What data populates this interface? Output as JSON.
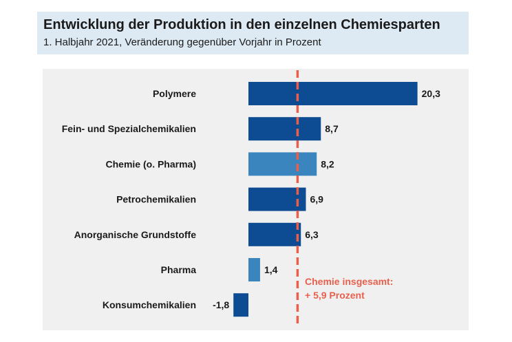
{
  "chart_data": {
    "type": "bar",
    "orientation": "horizontal",
    "title": "Entwicklung der Produktion in den einzelnen Chemiesparten",
    "subtitle": "1. Halbjahr 2021, Veränderung gegenüber Vorjahr in Prozent",
    "categories": [
      "Polymere",
      "Fein- und Spezialchemikalien",
      "Chemie (o. Pharma)",
      "Petrochemikalien",
      "Anorganische Grundstoffe",
      "Pharma",
      "Konsumchemikalien"
    ],
    "values": [
      20.3,
      8.7,
      8.2,
      6.9,
      6.3,
      1.4,
      -1.8
    ],
    "value_labels": [
      "20,3",
      "8,7",
      "8,2",
      "6,9",
      "6,3",
      "1,4",
      "-1,8"
    ],
    "bar_colors": [
      "#0d4c92",
      "#0d4c92",
      "#3a85bd",
      "#0d4c92",
      "#0d4c92",
      "#3a85bd",
      "#0d4c92"
    ],
    "reference_line": {
      "value": 5.9,
      "color": "#e8604c",
      "label_line1": "Chemie insgesamt:",
      "label_line2": "+ 5,9 Prozent"
    },
    "xlim": [
      -1.8,
      20.3
    ],
    "grid": false,
    "legend": "none",
    "header_background": "#dde9f3",
    "panel_background": "#f0f0f0"
  }
}
